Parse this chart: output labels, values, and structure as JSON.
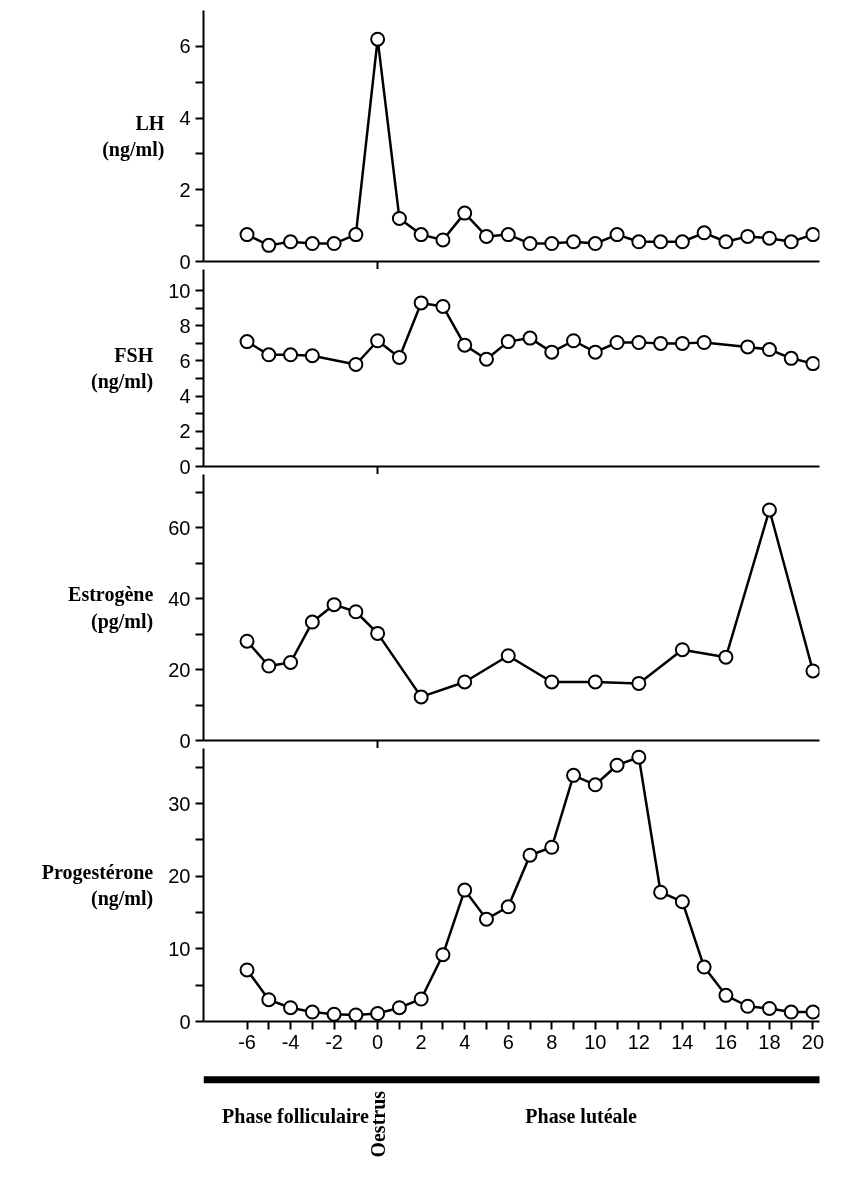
{
  "chart_data": [
    {
      "type": "line",
      "ylabel": "LH (ng/ml)",
      "marker": "circle",
      "line_style": "solid",
      "grid": false,
      "tick_labels": "y",
      "xlim": [
        -8,
        20.3
      ],
      "xticks": [
        {
          "value": 0,
          "label": null
        }
      ],
      "ylim": [
        0,
        7
      ],
      "yticks": [
        0,
        {
          "value": 1,
          "label": null
        },
        2,
        {
          "value": 3,
          "label": null
        },
        4,
        {
          "value": 5,
          "label": null
        },
        6
      ],
      "x": [
        -6,
        -5,
        -4,
        -3,
        -2,
        -1,
        0,
        1,
        2,
        3,
        4,
        5,
        6,
        7,
        8,
        9,
        10,
        11,
        12,
        13,
        14,
        15,
        16,
        17,
        18,
        19,
        20
      ],
      "series": [
        {
          "color": "#000000",
          "values": [
            0.75,
            0.45,
            0.55,
            0.5,
            0.5,
            0.75,
            6.2,
            1.2,
            0.75,
            0.6,
            1.35,
            0.7,
            0.75,
            0.5,
            0.5,
            0.55,
            0.5,
            0.75,
            0.55,
            0.55,
            0.55,
            0.8,
            0.55,
            0.7,
            0.65,
            0.55,
            0.75
          ]
        }
      ]
    },
    {
      "type": "line",
      "ylabel": "FSH (ng/ml)",
      "marker": "circle",
      "line_style": "solid",
      "grid": false,
      "tick_labels": "y",
      "xlim": [
        -8,
        20.3
      ],
      "xticks": [
        {
          "value": 0,
          "label": null
        }
      ],
      "ylim": [
        0,
        11.2
      ],
      "yticks": [
        0,
        {
          "value": 1,
          "label": null
        },
        2,
        {
          "value": 3,
          "label": null
        },
        4,
        {
          "value": 5,
          "label": null
        },
        6,
        {
          "value": 7,
          "label": null
        },
        8,
        {
          "value": 9,
          "label": null
        },
        10
      ],
      "x": [
        -6,
        -5,
        -4,
        -3,
        -1,
        0,
        1,
        2,
        3,
        4,
        5,
        6,
        7,
        8,
        9,
        10,
        11,
        12,
        13,
        14,
        15,
        17,
        18,
        19,
        20
      ],
      "series": [
        {
          "color": "#000000",
          "values": [
            7.1,
            6.35,
            6.35,
            6.3,
            5.8,
            7.15,
            6.2,
            9.3,
            9.1,
            6.9,
            6.1,
            7.1,
            7.3,
            6.5,
            7.15,
            6.5,
            7.05,
            7.05,
            7.0,
            7.0,
            7.05,
            6.8,
            6.65,
            6.15,
            5.85
          ]
        }
      ]
    },
    {
      "type": "line",
      "ylabel": "Estrogène (pg/ml)",
      "marker": "circle",
      "line_style": "solid",
      "grid": false,
      "tick_labels": "y",
      "xlim": [
        -8,
        20.3
      ],
      "xticks": [
        {
          "value": 0,
          "label": null
        }
      ],
      "ylim": [
        0,
        75
      ],
      "yticks": [
        0,
        {
          "value": 10,
          "label": null
        },
        20,
        {
          "value": 30,
          "label": null
        },
        40,
        {
          "value": 50,
          "label": null
        },
        60,
        {
          "value": 70,
          "label": null
        }
      ],
      "x": [
        -6,
        -5,
        -4,
        -3,
        -2,
        -1,
        0,
        2,
        4,
        6,
        8,
        10,
        12,
        14,
        16,
        18,
        20
      ],
      "series": [
        {
          "color": "#000000",
          "values": [
            28,
            21,
            22,
            33.4,
            38.3,
            36.3,
            30.2,
            12.3,
            16.5,
            23.9,
            16.5,
            16.5,
            16.1,
            25.6,
            23.5,
            65,
            19.6
          ]
        }
      ]
    },
    {
      "type": "line",
      "ylabel": "Progestérone (ng/ml)",
      "marker": "circle",
      "line_style": "solid",
      "grid": false,
      "xlim": [
        -8,
        20.3
      ],
      "xticks": [
        -6,
        {
          "value": -5,
          "label": null
        },
        -4,
        {
          "value": -3,
          "label": null
        },
        -2,
        {
          "value": -1,
          "label": null
        },
        0,
        {
          "value": 1,
          "label": null
        },
        2,
        {
          "value": 3,
          "label": null
        },
        4,
        {
          "value": 5,
          "label": null
        },
        6,
        {
          "value": 7,
          "label": null
        },
        8,
        {
          "value": 9,
          "label": null
        },
        10,
        {
          "value": 11,
          "label": null
        },
        12,
        {
          "value": 13,
          "label": null
        },
        14,
        {
          "value": 15,
          "label": null
        },
        16,
        {
          "value": 17,
          "label": null
        },
        18,
        {
          "value": 19,
          "label": null
        },
        20
      ],
      "ylim": [
        0,
        37.6
      ],
      "yticks": [
        0,
        {
          "value": 5,
          "label": null
        },
        10,
        {
          "value": 15,
          "label": null
        },
        20,
        {
          "value": 25,
          "label": null
        },
        30,
        {
          "value": 35,
          "label": null
        }
      ],
      "x": [
        -6,
        -5,
        -4,
        -3,
        -2,
        -1,
        0,
        1,
        2,
        3,
        4,
        5,
        6,
        7,
        8,
        9,
        10,
        11,
        12,
        13,
        14,
        15,
        16,
        17,
        18,
        19,
        20
      ],
      "series": [
        {
          "color": "#000000",
          "values": [
            7.1,
            3.0,
            1.9,
            1.3,
            1.0,
            0.9,
            1.1,
            1.9,
            3.1,
            9.2,
            18.1,
            14.1,
            15.8,
            22.9,
            24.0,
            33.9,
            32.6,
            35.3,
            36.4,
            17.8,
            16.5,
            7.5,
            3.6,
            2.1,
            1.8,
            1.3,
            1.3
          ]
        }
      ],
      "annotations": [
        "Phase folliculaire",
        "Oestrus",
        "Phase lutéale"
      ]
    }
  ]
}
